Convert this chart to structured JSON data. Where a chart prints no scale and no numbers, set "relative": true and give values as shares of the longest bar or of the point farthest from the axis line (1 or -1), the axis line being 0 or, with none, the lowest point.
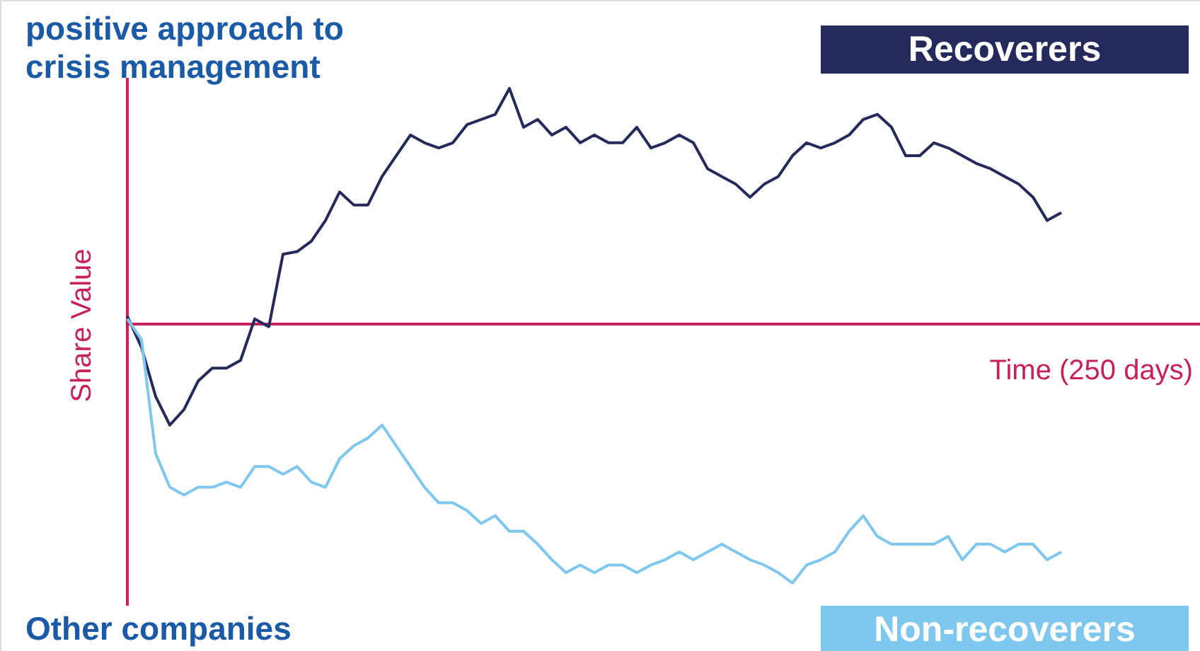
{
  "chart_data": {
    "type": "line",
    "relative": true,
    "title": "positive approach to\ncrisis management",
    "xlabel": "Time (250 days)",
    "ylabel": "Share Value",
    "annotations": [
      "Other companies"
    ],
    "ref_lines": [
      {
        "axis": "y",
        "value": 0,
        "color": "#c8205a"
      }
    ],
    "categories": [
      null,
      null,
      null,
      null,
      null,
      null,
      null,
      null,
      null,
      null,
      null,
      null,
      null,
      null,
      null,
      null,
      null,
      null,
      null,
      null,
      null,
      null,
      null,
      null,
      null,
      null,
      null,
      null,
      null,
      null,
      null,
      null,
      null,
      null,
      null,
      null,
      null,
      null,
      null,
      null,
      null,
      null,
      null,
      null,
      null,
      null,
      null,
      null,
      null,
      null,
      null,
      null,
      null,
      null,
      null,
      null,
      null,
      null,
      null,
      null,
      null,
      null,
      null,
      null,
      null,
      null,
      null
    ],
    "series": [
      {
        "name": "Recoverers",
        "color": "#252a5c",
        "values": [
          0.03,
          -0.09,
          -0.28,
          -0.39,
          -0.33,
          -0.22,
          -0.17,
          -0.17,
          -0.14,
          0.02,
          -0.01,
          0.27,
          0.28,
          0.32,
          0.4,
          0.51,
          0.46,
          0.46,
          0.57,
          0.65,
          0.73,
          0.7,
          0.68,
          0.7,
          0.77,
          0.79,
          0.81,
          0.91,
          0.76,
          0.79,
          0.73,
          0.76,
          0.7,
          0.73,
          0.7,
          0.7,
          0.76,
          0.68,
          0.7,
          0.73,
          0.7,
          0.6,
          0.57,
          0.54,
          0.49,
          0.54,
          0.57,
          0.65,
          0.7,
          0.68,
          0.7,
          0.73,
          0.79,
          0.81,
          0.76,
          0.65,
          0.65,
          0.7,
          0.68,
          0.65,
          0.62,
          0.6,
          0.57,
          0.54,
          0.49,
          0.4,
          0.43
        ]
      },
      {
        "name": "Non-recoverers",
        "color": "#7ec8ef",
        "values": [
          0.02,
          -0.06,
          -0.5,
          -0.63,
          -0.66,
          -0.63,
          -0.63,
          -0.61,
          -0.63,
          -0.55,
          -0.55,
          -0.58,
          -0.55,
          -0.61,
          -0.63,
          -0.52,
          -0.47,
          -0.44,
          -0.39,
          -0.47,
          -0.55,
          -0.63,
          -0.69,
          -0.69,
          -0.72,
          -0.77,
          -0.74,
          -0.8,
          -0.8,
          -0.85,
          -0.91,
          -0.96,
          -0.93,
          -0.96,
          -0.93,
          -0.93,
          -0.96,
          -0.93,
          -0.91,
          -0.88,
          -0.91,
          -0.88,
          -0.85,
          -0.88,
          -0.91,
          -0.93,
          -0.96,
          -1,
          -0.93,
          -0.91,
          -0.88,
          -0.8,
          -0.74,
          -0.82,
          -0.85,
          -0.85,
          -0.85,
          -0.85,
          -0.82,
          -0.91,
          -0.85,
          -0.85,
          -0.88,
          -0.85,
          -0.85,
          -0.91,
          -0.88
        ]
      }
    ]
  }
}
